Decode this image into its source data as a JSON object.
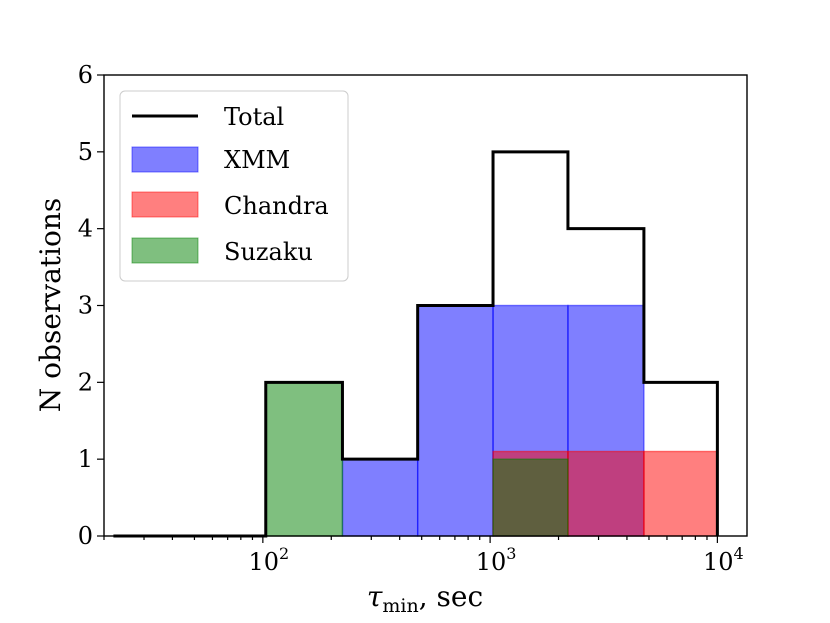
{
  "chart_data": {
    "type": "histogram",
    "x_scale": "log",
    "xlim": [
      20,
      13500
    ],
    "ylim": [
      0,
      6
    ],
    "xlabel": {
      "symbol": "τ",
      "subscript": "min",
      "unit": ",  sec"
    },
    "ylabel": "N observations",
    "y_ticks": [
      "0",
      "1",
      "2",
      "3",
      "4",
      "5",
      "6"
    ],
    "x_ticks": [
      {
        "value": 100,
        "base": "10",
        "exp": "2"
      },
      {
        "value": 1000,
        "base": "10",
        "exp": "3"
      },
      {
        "value": 10000,
        "base": "10",
        "exp": "4"
      }
    ],
    "bin_edges": [
      22,
      47,
      103,
      224,
      480,
      1030,
      2200,
      4750,
      10000
    ],
    "series": [
      {
        "name": "Total",
        "style": "step",
        "color": "#000000",
        "counts": [
          0,
          0,
          2,
          1,
          3,
          5,
          4,
          2
        ]
      },
      {
        "name": "XMM",
        "style": "bar",
        "color": "#0000ff",
        "alpha": 0.5,
        "counts": [
          0,
          0,
          0,
          1,
          3,
          3,
          3,
          0
        ]
      },
      {
        "name": "Chandra",
        "style": "bar",
        "color": "#ff0000",
        "alpha": 0.5,
        "counts": [
          0,
          0,
          0,
          0,
          0,
          1.1,
          1.1,
          1.1
        ]
      },
      {
        "name": "Suzaku",
        "style": "bar",
        "color": "#008000",
        "alpha": 0.5,
        "counts": [
          0,
          0,
          2,
          0,
          0,
          1,
          0,
          0
        ]
      }
    ],
    "legend": {
      "position": "top-left",
      "entries": [
        "Total",
        "XMM",
        "Chandra",
        "Suzaku"
      ]
    }
  }
}
